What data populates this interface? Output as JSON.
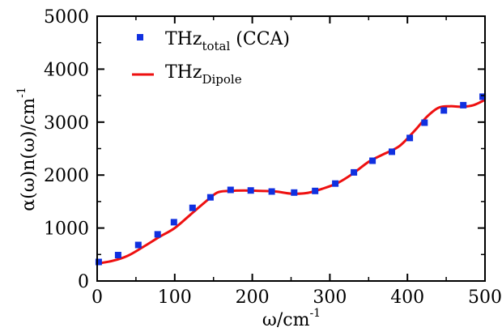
{
  "chart_data": {
    "type": "line",
    "xlabel": {
      "main": "ω/cm",
      "sup": "-1"
    },
    "ylabel": {
      "main": "α(ω)n(ω)/cm",
      "sup": "-1"
    },
    "xlim": [
      0,
      500
    ],
    "ylim": [
      0,
      5000
    ],
    "x_ticks": [
      "0",
      "100",
      "200",
      "300",
      "400",
      "500"
    ],
    "y_ticks": [
      "0",
      "1000",
      "2000",
      "3000",
      "4000",
      "5000"
    ],
    "grid": false,
    "legend_position": "top-left",
    "series": [
      {
        "name": {
          "main": "THz",
          "sub": "total",
          "suffix": " (CCA)"
        },
        "style": "square-markers",
        "color": "#1030e0",
        "x": [
          2,
          27,
          53,
          78,
          99,
          123,
          146,
          172,
          198,
          225,
          254,
          281,
          307,
          331,
          355,
          380,
          403,
          422,
          447,
          472,
          497
        ],
        "y": [
          360,
          490,
          680,
          880,
          1110,
          1380,
          1580,
          1720,
          1710,
          1690,
          1670,
          1700,
          1840,
          2050,
          2270,
          2440,
          2700,
          2990,
          3220,
          3320,
          3480
        ]
      },
      {
        "name": {
          "main": "THz",
          "sub": "Dipole",
          "suffix": ""
        },
        "style": "line",
        "color": "#ee1010",
        "x": [
          0,
          20,
          40,
          60,
          80,
          100,
          120,
          140,
          155,
          170,
          190,
          210,
          230,
          250,
          270,
          290,
          310,
          330,
          350,
          370,
          390,
          410,
          425,
          440,
          455,
          470,
          485,
          500
        ],
        "y": [
          330,
          380,
          480,
          650,
          830,
          1000,
          1250,
          1500,
          1670,
          1700,
          1710,
          1700,
          1690,
          1650,
          1660,
          1740,
          1850,
          2030,
          2250,
          2400,
          2550,
          2850,
          3100,
          3270,
          3300,
          3290,
          3320,
          3420
        ]
      }
    ]
  }
}
